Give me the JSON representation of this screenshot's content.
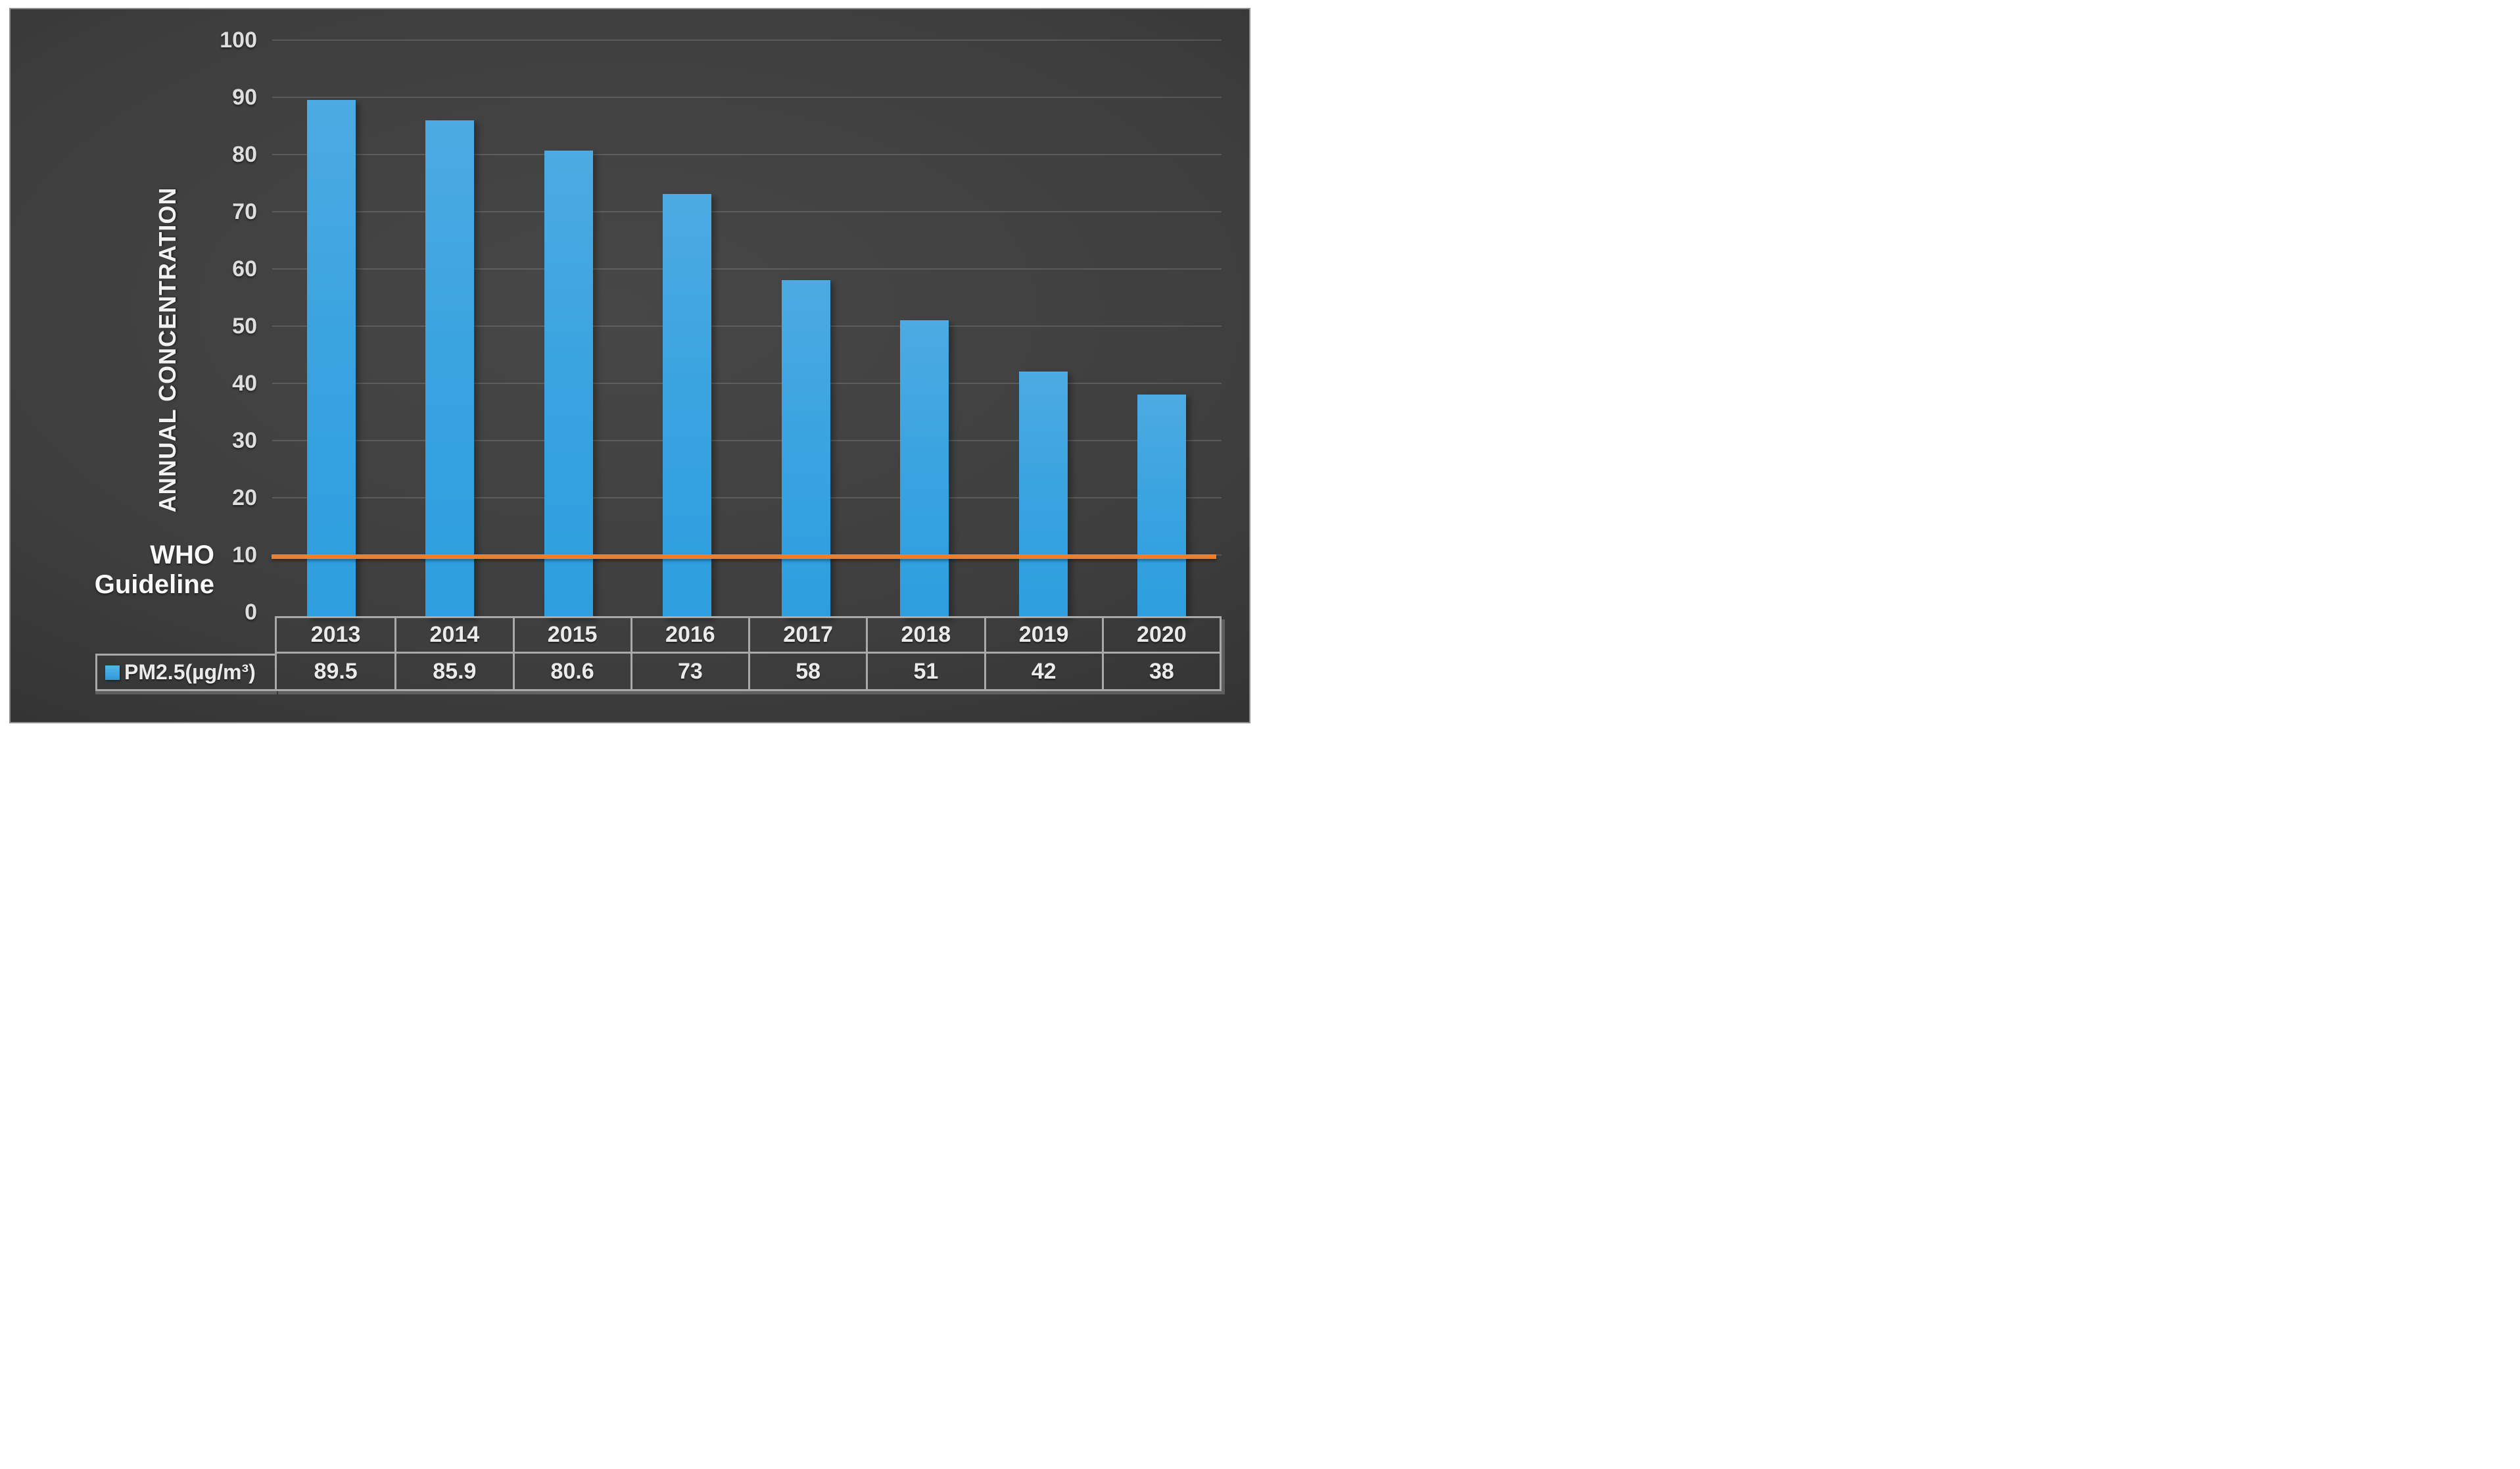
{
  "chart_data": {
    "type": "bar",
    "title": "",
    "categories": [
      "2013",
      "2014",
      "2015",
      "2016",
      "2017",
      "2018",
      "2019",
      "2020"
    ],
    "series": [
      {
        "name": "PM2.5(µg/m³)",
        "values": [
          89.5,
          85.9,
          80.6,
          73,
          58,
          51,
          42,
          38
        ],
        "value_labels": [
          "89.5",
          "85.9",
          "80.6",
          "73",
          "58",
          "51",
          "42",
          "38"
        ]
      }
    ],
    "xlabel": "",
    "ylabel": "ANNUAL CONCENTRATION",
    "ylim": [
      0,
      100
    ],
    "ytick_step": 10,
    "ytick_labels": [
      "100",
      "90",
      "80",
      "70",
      "60",
      "50",
      "40",
      "30",
      "20",
      "10",
      "0"
    ],
    "grid": true,
    "legend_position": "bottom-table-left",
    "guideline": {
      "label_line1": "WHO",
      "label_line2": "Guideline",
      "value": 10,
      "color": "#F07E27"
    }
  },
  "colors": {
    "frame": "#FFFFFF",
    "panel_center": "#474747",
    "panel_edge": "#1F1F1F",
    "bar_top": "#4DAAE2",
    "bar_bottom": "#2D9EDF",
    "guideline_line": "#F07E27",
    "table_border": "#A9A9A9",
    "tick_text": "#DEDEDE",
    "label_text": "#F5F5F5"
  }
}
